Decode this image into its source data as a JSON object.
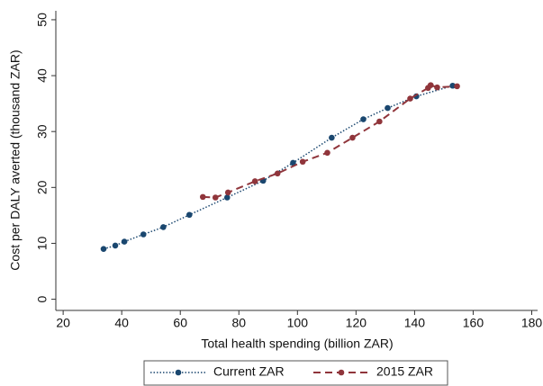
{
  "chart_data": {
    "type": "line",
    "x_label": "Total health spending (billion ZAR)",
    "y_label": "Cost per DALY averted (thousand ZAR)",
    "xlim": [
      17.5,
      182
    ],
    "xticks": [
      20,
      40,
      60,
      80,
      100,
      120,
      140,
      160,
      180
    ],
    "ylim": [
      -2,
      51.6
    ],
    "yticks": [
      0,
      10,
      20,
      30,
      40,
      50
    ],
    "legend": "bottom",
    "series": [
      {
        "name": "Current ZAR",
        "color": "#1a476f",
        "style": "dotted",
        "x": [
          33.8,
          37.8,
          40.9,
          47.4,
          54.2,
          63.1,
          76,
          88.3,
          98.5,
          111.7,
          122.5,
          130.8,
          140.6,
          153
        ],
        "values": [
          9.0,
          9.6,
          10.3,
          11.6,
          12.9,
          15.1,
          18.2,
          21.2,
          24.4,
          28.9,
          32.2,
          34.2,
          36.3,
          38.2
        ]
      },
      {
        "name": "2015 ZAR",
        "color": "#90353b",
        "style": "dashed",
        "x": [
          67.7,
          72,
          76.3,
          85.5,
          93.2,
          101.8,
          110.2,
          118.8,
          128,
          138.5,
          144.6,
          145.5,
          147.7,
          154.5
        ],
        "values": [
          18.3,
          18.2,
          19.1,
          21.1,
          22.5,
          24.6,
          26.2,
          28.9,
          31.8,
          35.9,
          37.8,
          38.3,
          37.9,
          38.1
        ]
      }
    ]
  }
}
